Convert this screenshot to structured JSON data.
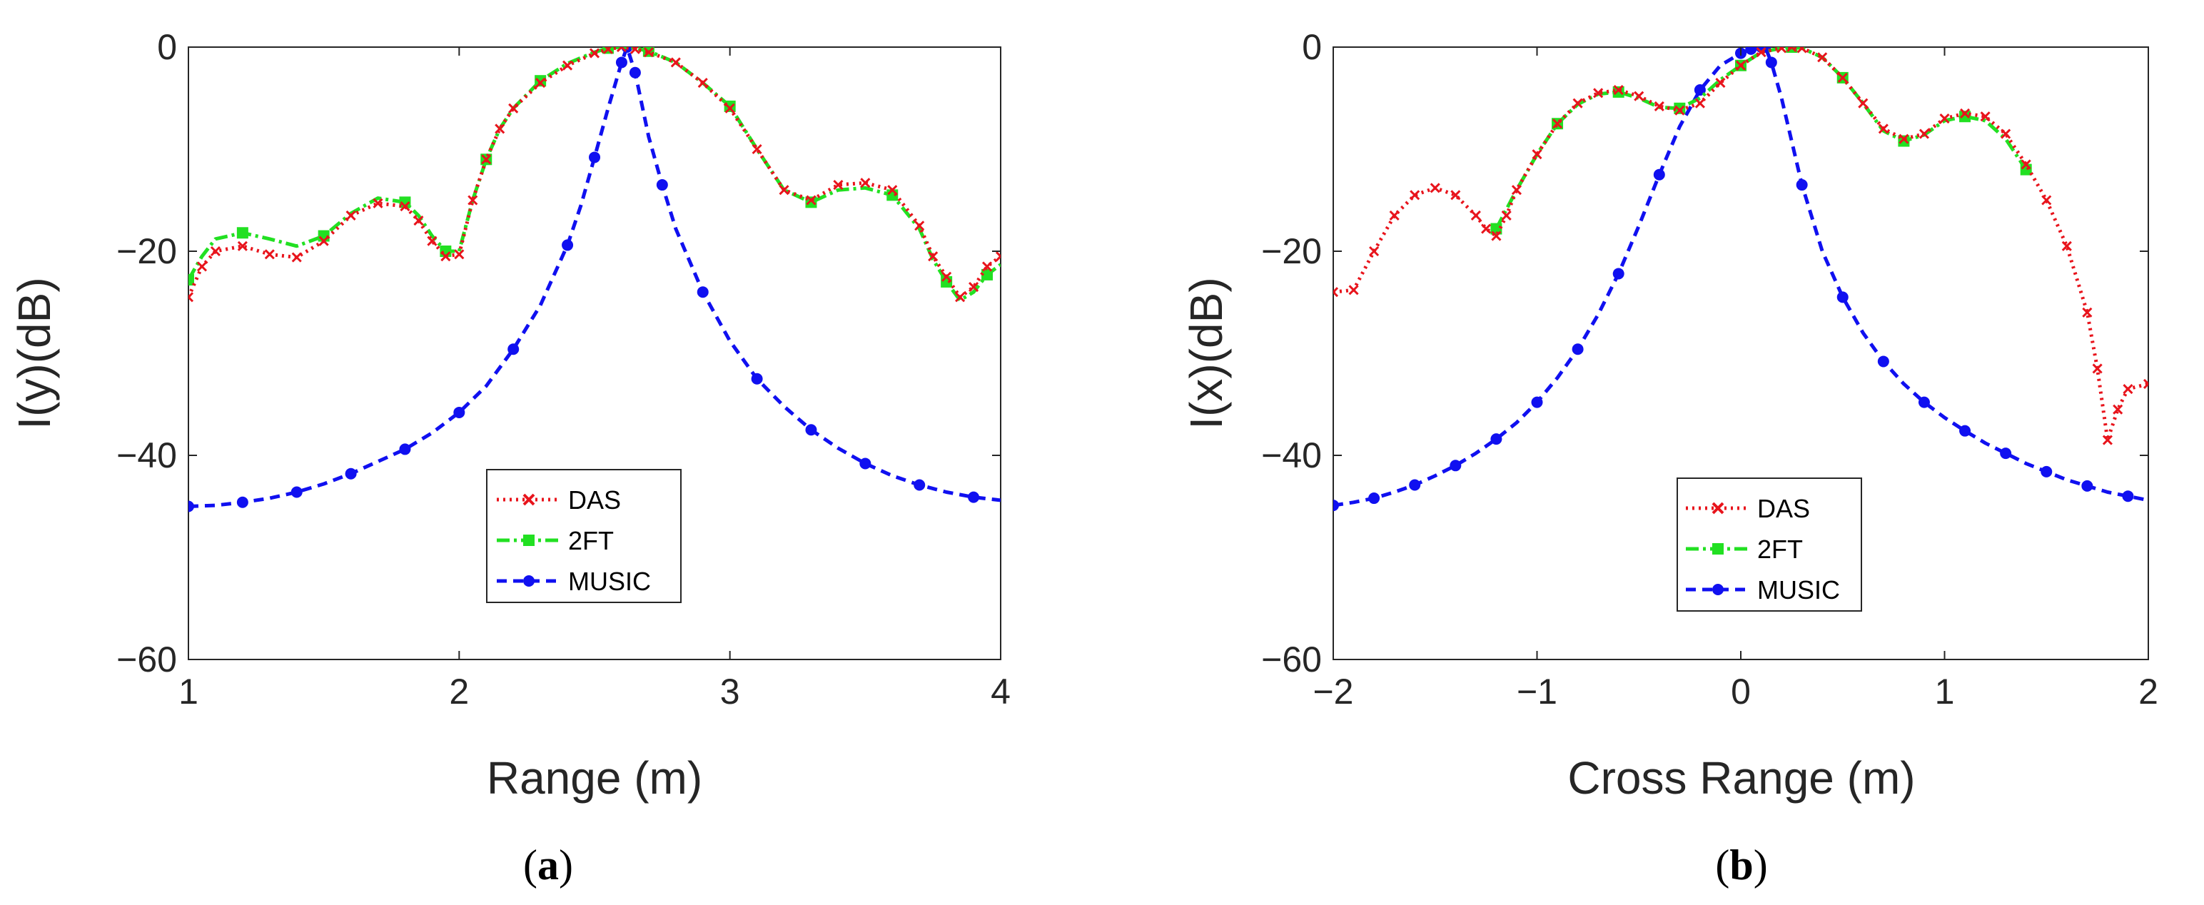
{
  "figure": {
    "panels": [
      "a",
      "b"
    ]
  },
  "chart_data": [
    {
      "type": "line",
      "panel": "a",
      "caption_letter": "a",
      "xlabel": "Range (m)",
      "ylabel": "I(y)(dB)",
      "xlim": [
        1,
        4
      ],
      "ylim": [
        -60,
        0
      ],
      "xticks": [
        1,
        2,
        3,
        4
      ],
      "xtick_labels": [
        "1",
        "2",
        "3",
        "4"
      ],
      "yticks": [
        0,
        -20,
        -40,
        -60
      ],
      "ytick_labels": [
        "0",
        "−20",
        "−40",
        "−60"
      ],
      "legend": [
        "DAS",
        "2FT",
        "MUSIC"
      ],
      "legend_position": "lower-center",
      "series": [
        {
          "name": "DAS",
          "color": "#e8141c",
          "style": "dotted",
          "marker": "x",
          "x": [
            1.0,
            1.05,
            1.1,
            1.2,
            1.3,
            1.4,
            1.5,
            1.6,
            1.7,
            1.8,
            1.85,
            1.9,
            1.95,
            2.0,
            2.05,
            2.1,
            2.15,
            2.2,
            2.3,
            2.4,
            2.5,
            2.55,
            2.6,
            2.65,
            2.7,
            2.8,
            2.9,
            3.0,
            3.1,
            3.2,
            3.3,
            3.4,
            3.5,
            3.6,
            3.7,
            3.75,
            3.8,
            3.85,
            3.9,
            3.95,
            4.0
          ],
          "y": [
            -24.5,
            -21.5,
            -20.0,
            -19.5,
            -20.3,
            -20.6,
            -19.0,
            -16.5,
            -15.3,
            -15.6,
            -17.0,
            -19.0,
            -20.5,
            -20.3,
            -15.0,
            -11.0,
            -8.0,
            -6.0,
            -3.5,
            -1.8,
            -0.6,
            -0.2,
            0.0,
            -0.2,
            -0.5,
            -1.5,
            -3.5,
            -6.0,
            -10.0,
            -14.0,
            -15.0,
            -13.5,
            -13.3,
            -14.0,
            -17.5,
            -20.5,
            -22.5,
            -24.5,
            -23.5,
            -21.5,
            -20.5
          ]
        },
        {
          "name": "2FT",
          "color": "#22e022",
          "style": "dashdot",
          "marker": "square",
          "x": [
            1.0,
            1.05,
            1.1,
            1.2,
            1.3,
            1.4,
            1.5,
            1.6,
            1.7,
            1.8,
            1.85,
            1.9,
            1.95,
            2.0,
            2.05,
            2.1,
            2.15,
            2.2,
            2.3,
            2.4,
            2.5,
            2.55,
            2.6,
            2.65,
            2.7,
            2.8,
            2.9,
            3.0,
            3.1,
            3.2,
            3.3,
            3.4,
            3.5,
            3.6,
            3.7,
            3.75,
            3.8,
            3.85,
            3.9,
            3.95,
            4.0
          ],
          "y": [
            -22.8,
            -20.5,
            -18.8,
            -18.2,
            -18.8,
            -19.5,
            -18.5,
            -16.3,
            -14.8,
            -15.2,
            -16.5,
            -18.5,
            -20.0,
            -20.0,
            -15.0,
            -11.0,
            -8.0,
            -6.0,
            -3.3,
            -1.6,
            -0.5,
            -0.1,
            0.0,
            -0.1,
            -0.4,
            -1.5,
            -3.5,
            -5.8,
            -10.0,
            -14.0,
            -15.2,
            -14.0,
            -13.8,
            -14.5,
            -17.8,
            -20.8,
            -23.0,
            -24.8,
            -24.0,
            -22.3,
            -21.3
          ]
        },
        {
          "name": "MUSIC",
          "color": "#1010f0",
          "style": "dashed",
          "marker": "circle",
          "x": [
            1.0,
            1.1,
            1.2,
            1.3,
            1.4,
            1.5,
            1.6,
            1.7,
            1.8,
            1.9,
            2.0,
            2.1,
            2.2,
            2.3,
            2.4,
            2.45,
            2.5,
            2.55,
            2.6,
            2.62,
            2.65,
            2.7,
            2.75,
            2.8,
            2.9,
            3.0,
            3.1,
            3.2,
            3.3,
            3.4,
            3.5,
            3.6,
            3.7,
            3.8,
            3.9,
            4.0
          ],
          "y": [
            -45.0,
            -44.9,
            -44.6,
            -44.2,
            -43.6,
            -42.8,
            -41.8,
            -40.6,
            -39.4,
            -37.8,
            -35.8,
            -33.2,
            -29.6,
            -25.3,
            -19.4,
            -15.5,
            -10.8,
            -6.0,
            -1.5,
            0.0,
            -2.5,
            -8.8,
            -13.5,
            -17.8,
            -24.0,
            -28.8,
            -32.5,
            -35.2,
            -37.5,
            -39.3,
            -40.8,
            -42.0,
            -42.9,
            -43.6,
            -44.1,
            -44.4
          ]
        }
      ]
    },
    {
      "type": "line",
      "panel": "b",
      "caption_letter": "b",
      "xlabel": "Cross Range (m)",
      "ylabel": "I(x)(dB)",
      "xlim": [
        -2,
        2
      ],
      "ylim": [
        -60,
        0
      ],
      "xticks": [
        -2,
        -1,
        0,
        1,
        2
      ],
      "xtick_labels": [
        "−2",
        "−1",
        "0",
        "1",
        "2"
      ],
      "yticks": [
        0,
        -20,
        -40,
        -60
      ],
      "ytick_labels": [
        "0",
        "−20",
        "−40",
        "−60"
      ],
      "legend": [
        "DAS",
        "2FT",
        "MUSIC"
      ],
      "legend_position": "lower-center",
      "series": [
        {
          "name": "DAS",
          "color": "#e8141c",
          "style": "dotted",
          "marker": "x",
          "x": [
            -2.0,
            -1.9,
            -1.8,
            -1.7,
            -1.6,
            -1.5,
            -1.4,
            -1.3,
            -1.25,
            -1.2,
            -1.15,
            -1.1,
            -1.0,
            -0.9,
            -0.8,
            -0.7,
            -0.6,
            -0.5,
            -0.4,
            -0.3,
            -0.2,
            -0.1,
            0.0,
            0.1,
            0.2,
            0.25,
            0.3,
            0.4,
            0.5,
            0.6,
            0.7,
            0.8,
            0.9,
            1.0,
            1.1,
            1.2,
            1.3,
            1.4,
            1.5,
            1.6,
            1.7,
            1.75,
            1.8,
            1.85,
            1.9,
            2.0
          ],
          "y": [
            -24.0,
            -23.8,
            -20.0,
            -16.5,
            -14.5,
            -13.8,
            -14.5,
            -16.5,
            -17.8,
            -18.5,
            -16.5,
            -14.0,
            -10.5,
            -7.5,
            -5.5,
            -4.5,
            -4.2,
            -4.8,
            -5.8,
            -6.2,
            -5.5,
            -3.5,
            -1.8,
            -0.5,
            -0.1,
            0.0,
            -0.1,
            -1.0,
            -3.0,
            -5.5,
            -8.0,
            -9.0,
            -8.5,
            -7.0,
            -6.5,
            -6.8,
            -8.5,
            -11.5,
            -15.0,
            -19.5,
            -26.0,
            -31.5,
            -38.5,
            -35.5,
            -33.5,
            -33.0
          ]
        },
        {
          "name": "2FT",
          "color": "#22e022",
          "style": "dashdot",
          "marker": "square",
          "x": [
            -1.2,
            -1.1,
            -1.0,
            -0.9,
            -0.8,
            -0.7,
            -0.6,
            -0.5,
            -0.4,
            -0.3,
            -0.2,
            -0.1,
            0.0,
            0.1,
            0.2,
            0.25,
            0.3,
            0.4,
            0.5,
            0.6,
            0.7,
            0.8,
            0.9,
            1.0,
            1.1,
            1.2,
            1.3,
            1.4
          ],
          "y": [
            -17.8,
            -14.0,
            -10.5,
            -7.5,
            -5.6,
            -4.6,
            -4.4,
            -5.0,
            -5.9,
            -6.0,
            -5.0,
            -3.2,
            -1.8,
            -0.5,
            -0.1,
            0.0,
            -0.1,
            -1.0,
            -3.0,
            -5.5,
            -8.2,
            -9.2,
            -8.6,
            -7.2,
            -6.8,
            -7.2,
            -9.0,
            -12.0
          ]
        },
        {
          "name": "MUSIC",
          "color": "#1010f0",
          "style": "dashed",
          "marker": "circle",
          "x": [
            -2.0,
            -1.9,
            -1.8,
            -1.7,
            -1.6,
            -1.5,
            -1.4,
            -1.3,
            -1.2,
            -1.1,
            -1.0,
            -0.9,
            -0.8,
            -0.7,
            -0.6,
            -0.5,
            -0.4,
            -0.3,
            -0.2,
            -0.1,
            0.0,
            0.05,
            0.1,
            0.12,
            0.15,
            0.2,
            0.3,
            0.4,
            0.5,
            0.6,
            0.7,
            0.8,
            0.9,
            1.0,
            1.1,
            1.2,
            1.3,
            1.4,
            1.5,
            1.6,
            1.7,
            1.8,
            1.9,
            2.0
          ],
          "y": [
            -44.9,
            -44.6,
            -44.2,
            -43.6,
            -42.9,
            -42.0,
            -41.0,
            -39.8,
            -38.4,
            -36.8,
            -34.8,
            -32.4,
            -29.6,
            -26.2,
            -22.2,
            -17.5,
            -12.5,
            -7.8,
            -4.2,
            -1.8,
            -0.6,
            -0.2,
            0.0,
            0.0,
            -1.5,
            -5.0,
            -13.5,
            -20.0,
            -24.5,
            -28.0,
            -30.8,
            -33.0,
            -34.8,
            -36.3,
            -37.6,
            -38.8,
            -39.8,
            -40.8,
            -41.6,
            -42.4,
            -43.0,
            -43.6,
            -44.0,
            -44.4
          ]
        }
      ]
    }
  ]
}
